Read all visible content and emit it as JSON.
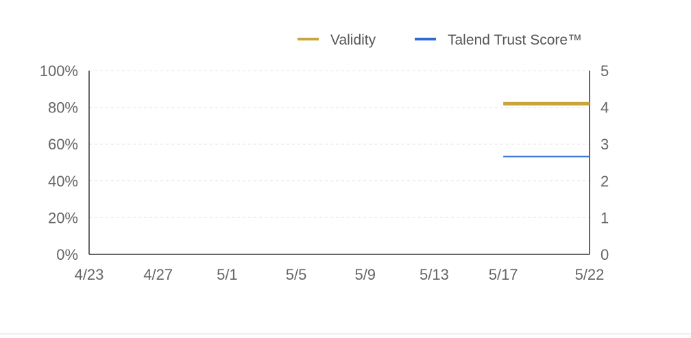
{
  "chart_data": {
    "type": "line",
    "x_ticks": [
      "4/23",
      "4/27",
      "5/1",
      "5/5",
      "5/9",
      "5/13",
      "5/17",
      "5/22"
    ],
    "x_range": [
      "4/23",
      "5/22"
    ],
    "y_left": {
      "ticks": [
        "0%",
        "20%",
        "40%",
        "60%",
        "80%",
        "100%"
      ],
      "range": [
        0,
        100
      ]
    },
    "y_right": {
      "ticks": [
        "0",
        "1",
        "2",
        "3",
        "4",
        "5"
      ],
      "range": [
        0,
        5
      ]
    },
    "grid": true,
    "legend_position": "top-right",
    "series": [
      {
        "name": "Validity",
        "axis": "left",
        "color": "#c9a63b",
        "points": [
          {
            "x": "5/17",
            "y": 82
          },
          {
            "x": "5/22",
            "y": 82
          }
        ]
      },
      {
        "name": "Talend Trust Score™",
        "axis": "right",
        "color": "#2f6bd6",
        "points": [
          {
            "x": "5/17",
            "y": 2.66
          },
          {
            "x": "5/22",
            "y": 2.66
          }
        ]
      }
    ]
  }
}
